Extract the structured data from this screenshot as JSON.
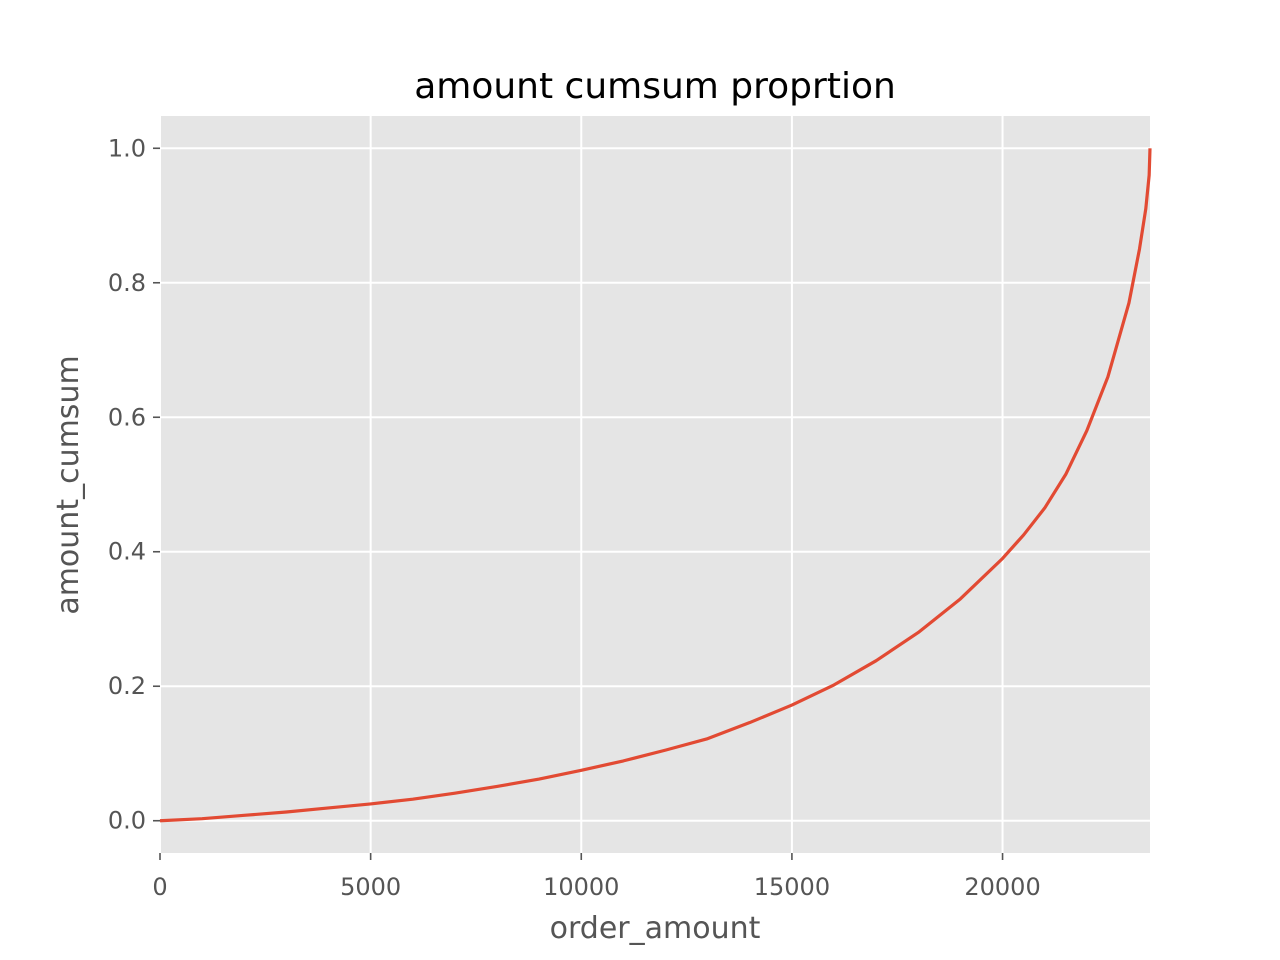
{
  "chart_data": {
    "type": "line",
    "title": "amount cumsum proprtion",
    "xlabel": "order_amount",
    "ylabel": "amount_cumsum",
    "xlim": [
      0,
      23500
    ],
    "ylim": [
      -0.048,
      1.048
    ],
    "x_ticks": [
      0,
      5000,
      10000,
      15000,
      20000
    ],
    "y_ticks": [
      0.0,
      0.2,
      0.4,
      0.6,
      0.8,
      1.0
    ],
    "x_tick_labels": [
      "0",
      "5000",
      "10000",
      "15000",
      "20000"
    ],
    "y_tick_labels": [
      "0.0",
      "0.2",
      "0.4",
      "0.6",
      "0.8",
      "1.0"
    ],
    "grid": true,
    "background": "#e5e5e5",
    "grid_color": "#ffffff",
    "series": [
      {
        "color": "#e24a33",
        "x": [
          0,
          1000,
          2000,
          3000,
          4000,
          5000,
          6000,
          7000,
          8000,
          9000,
          10000,
          11000,
          12000,
          13000,
          14000,
          15000,
          16000,
          17000,
          18000,
          19000,
          20000,
          20500,
          21000,
          21500,
          22000,
          22500,
          23000,
          23250,
          23400,
          23480,
          23500
        ],
        "y": [
          0.0,
          0.003,
          0.008,
          0.013,
          0.019,
          0.025,
          0.032,
          0.041,
          0.051,
          0.062,
          0.075,
          0.089,
          0.105,
          0.122,
          0.146,
          0.172,
          0.202,
          0.238,
          0.28,
          0.33,
          0.39,
          0.425,
          0.465,
          0.515,
          0.58,
          0.66,
          0.77,
          0.85,
          0.91,
          0.96,
          1.0
        ]
      }
    ]
  }
}
